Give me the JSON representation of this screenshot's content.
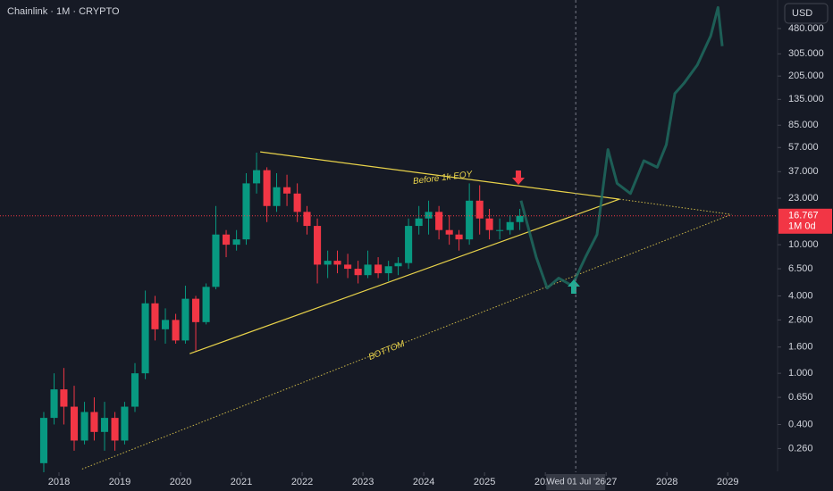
{
  "chart_data": {
    "type": "candlestick",
    "title": "Chainlink · 1M · CRYPTO",
    "currency": "USD",
    "log_scale": true,
    "xlim": [
      2017.03,
      2029.82
    ],
    "ylim": [
      0.17,
      800
    ],
    "xticks": [
      2018,
      2019,
      2020,
      2021,
      2022,
      2023,
      2024,
      2025,
      2026,
      2027,
      2028,
      2029
    ],
    "yticks": [
      {
        "value": 480,
        "label": "480.000"
      },
      {
        "value": 305,
        "label": "305.000"
      },
      {
        "value": 205,
        "label": "205.000"
      },
      {
        "value": 135,
        "label": "135.000"
      },
      {
        "value": 85,
        "label": "85.000"
      },
      {
        "value": 57,
        "label": "57.000"
      },
      {
        "value": 37,
        "label": "37.000"
      },
      {
        "value": 23,
        "label": "23.000"
      },
      {
        "value": 10,
        "label": "10.000"
      },
      {
        "value": 6.5,
        "label": "6.500"
      },
      {
        "value": 4,
        "label": "4.000"
      },
      {
        "value": 2.6,
        "label": "2.600"
      },
      {
        "value": 1.6,
        "label": "1.600"
      },
      {
        "value": 1,
        "label": "1.000"
      },
      {
        "value": 0.65,
        "label": "0.650"
      },
      {
        "value": 0.4,
        "label": "0.400"
      },
      {
        "value": 0.26,
        "label": "0.260"
      }
    ],
    "up_color": "#089981",
    "down_color": "#f23645",
    "x": [
      2017.75,
      2017.92,
      2018.08,
      2018.25,
      2018.42,
      2018.58,
      2018.75,
      2018.92,
      2019.08,
      2019.25,
      2019.42,
      2019.58,
      2019.75,
      2019.92,
      2020.08,
      2020.25,
      2020.42,
      2020.58,
      2020.75,
      2020.92,
      2021.08,
      2021.25,
      2021.42,
      2021.58,
      2021.75,
      2021.92,
      2022.08,
      2022.25,
      2022.42,
      2022.58,
      2022.75,
      2022.92,
      2023.08,
      2023.25,
      2023.42,
      2023.58,
      2023.75,
      2023.92,
      2024.08,
      2024.25,
      2024.42,
      2024.58,
      2024.75,
      2024.92,
      2025.08,
      2025.25,
      2025.42,
      2025.58
    ],
    "open": [
      0.2,
      0.45,
      0.75,
      0.55,
      0.3,
      0.5,
      0.35,
      0.45,
      0.3,
      0.55,
      1.0,
      3.5,
      2.2,
      2.6,
      1.8,
      3.8,
      2.5,
      4.7,
      12,
      10,
      11,
      30,
      38,
      20,
      28,
      25,
      18,
      14,
      7,
      7.5,
      7,
      6.5,
      5.8,
      7,
      6,
      6.8,
      7.2,
      14,
      16,
      18,
      13,
      12,
      11,
      22,
      16,
      13,
      13,
      15
    ],
    "high": [
      0.5,
      1.0,
      1.1,
      0.8,
      0.6,
      0.65,
      0.6,
      0.5,
      0.6,
      1.2,
      4.4,
      4.0,
      3.2,
      2.9,
      4.8,
      4.0,
      5.0,
      20,
      13,
      13,
      36,
      52,
      40,
      36,
      35,
      30,
      20,
      16,
      9,
      9,
      8.5,
      7.5,
      9,
      8,
      7.5,
      8,
      16,
      20,
      22,
      20,
      17,
      13,
      30,
      29,
      19,
      16,
      17,
      19
    ],
    "low": [
      0.17,
      0.4,
      0.4,
      0.25,
      0.28,
      0.3,
      0.25,
      0.25,
      0.28,
      0.5,
      0.9,
      1.8,
      1.7,
      1.7,
      1.7,
      1.5,
      2.4,
      4.5,
      8,
      9,
      10,
      25,
      15,
      18,
      20,
      15,
      12,
      5,
      5.5,
      6,
      5.5,
      5,
      5.5,
      5.5,
      5.2,
      5.8,
      6.5,
      12,
      12,
      11,
      10,
      9,
      10,
      12,
      11,
      11,
      12,
      13
    ],
    "close": [
      0.45,
      0.75,
      0.55,
      0.3,
      0.5,
      0.35,
      0.45,
      0.3,
      0.55,
      1.0,
      3.5,
      2.2,
      2.6,
      1.8,
      3.8,
      2.5,
      4.7,
      12,
      10,
      11,
      30,
      38,
      20,
      28,
      25,
      18,
      14,
      7,
      7.5,
      7,
      6.5,
      5.8,
      7,
      6,
      6.8,
      7.2,
      14,
      16,
      18,
      13,
      12,
      11,
      22,
      16,
      13,
      13,
      15,
      16.767
    ],
    "projection": {
      "color": "#1e6b5f",
      "x": [
        2025.6,
        2025.85,
        2026.03,
        2026.22,
        2026.44,
        2026.66,
        2026.85,
        2027.03,
        2027.18,
        2027.4,
        2027.62,
        2027.84,
        2027.99,
        2028.13,
        2028.28,
        2028.5,
        2028.72,
        2028.84,
        2028.91
      ],
      "values": [
        22,
        8,
        4.6,
        5.5,
        4.8,
        8,
        12,
        55,
        30,
        25,
        45,
        40,
        60,
        150,
        180,
        250,
        420,
        700,
        350
      ]
    },
    "trendlines": [
      {
        "color": "#e8d24a",
        "style": "solid",
        "x": [
          2021.31,
          2027.22
        ],
        "values": [
          52.7,
          22.6
        ]
      },
      {
        "color": "#e8d24a",
        "style": "solid",
        "x": [
          2020.15,
          2027.22
        ],
        "values": [
          1.42,
          22.6
        ]
      },
      {
        "color": "#c9b547",
        "style": "dotted",
        "x": [
          2027.22,
          2029.06
        ],
        "values": [
          22.6,
          17.2
        ]
      },
      {
        "color": "#c9b547",
        "style": "dotted",
        "x": [
          2018.38,
          2029.06
        ],
        "values": [
          0.18,
          17.2
        ]
      }
    ],
    "annotations": [
      {
        "text": "Before 1k EOY",
        "x": 2024.31,
        "y": 33,
        "angle": -7
      },
      {
        "text": "BOTTOM",
        "x": 2023.39,
        "y": 1.5,
        "angle": -22
      }
    ],
    "last_price": 16.767,
    "countdown": "1M 0d",
    "crosshair": {
      "x": 2026.5,
      "label": "Wed 01 Jul '26"
    }
  }
}
